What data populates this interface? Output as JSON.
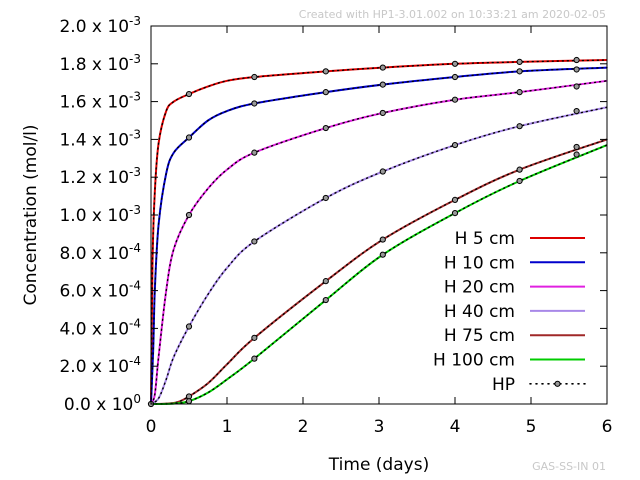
{
  "header_note": "Created with HP1-3.01.002 on 10:33:21 am 2020-02-05",
  "footer_note": "GAS-SS-IN 01",
  "chart_data": {
    "type": "line",
    "xlabel": "Time (days)",
    "ylabel": "Concentration (mol/l)",
    "xlim": [
      0,
      6
    ],
    "ylim": [
      0,
      0.002
    ],
    "x_ticks": [
      0,
      1,
      2,
      3,
      4,
      5,
      6
    ],
    "y_ticks": [
      {
        "value": 0.0,
        "mantissa": "0.0 x 10",
        "exponent": "0"
      },
      {
        "value": 0.0002,
        "mantissa": "2.0 x 10",
        "exponent": "-4"
      },
      {
        "value": 0.0004,
        "mantissa": "4.0 x 10",
        "exponent": "-4"
      },
      {
        "value": 0.0006,
        "mantissa": "6.0 x 10",
        "exponent": "-4"
      },
      {
        "value": 0.0008,
        "mantissa": "8.0 x 10",
        "exponent": "-4"
      },
      {
        "value": 0.001,
        "mantissa": "1.0 x 10",
        "exponent": "-3"
      },
      {
        "value": 0.0012,
        "mantissa": "1.2 x 10",
        "exponent": "-3"
      },
      {
        "value": 0.0014,
        "mantissa": "1.4 x 10",
        "exponent": "-3"
      },
      {
        "value": 0.0016,
        "mantissa": "1.6 x 10",
        "exponent": "-3"
      },
      {
        "value": 0.0018,
        "mantissa": "1.8 x 10",
        "exponent": "-3"
      },
      {
        "value": 0.002,
        "mantissa": "2.0 x 10",
        "exponent": "-3"
      }
    ],
    "grid": false,
    "legend_position": "bottom-right",
    "series": [
      {
        "name": "H 5 cm",
        "color": "#dd0000",
        "x": [
          0,
          0.02,
          0.05,
          0.1,
          0.2,
          0.3,
          0.5,
          0.75,
          1,
          1.36,
          2.3,
          3.05,
          4,
          4.85,
          6
        ],
        "y": [
          0,
          0.00075,
          0.00112,
          0.00138,
          0.00155,
          0.0016,
          0.00164,
          0.00168,
          0.00171,
          0.00173,
          0.00176,
          0.00178,
          0.0018,
          0.00181,
          0.00182
        ]
      },
      {
        "name": "H 10 cm",
        "color": "#0000cc",
        "x": [
          0,
          0.03,
          0.05,
          0.1,
          0.2,
          0.3,
          0.5,
          0.75,
          1,
          1.36,
          2.3,
          3.05,
          4,
          4.85,
          6
        ],
        "y": [
          0,
          0.0003,
          0.0006,
          0.00095,
          0.00122,
          0.00133,
          0.00141,
          0.0015,
          0.00155,
          0.00159,
          0.00165,
          0.00169,
          0.00173,
          0.00176,
          0.00178
        ]
      },
      {
        "name": "H 20 cm",
        "color": "#e020e0",
        "x": [
          0,
          0.05,
          0.1,
          0.2,
          0.3,
          0.5,
          0.75,
          1,
          1.36,
          2.3,
          3.05,
          4,
          4.85,
          6
        ],
        "y": [
          0,
          5e-05,
          0.00025,
          0.0006,
          0.00082,
          0.001,
          0.00114,
          0.00124,
          0.00133,
          0.00146,
          0.00154,
          0.00161,
          0.00165,
          0.00171
        ]
      },
      {
        "name": "H 40 cm",
        "color": "#a888e8",
        "x": [
          0,
          0.1,
          0.2,
          0.3,
          0.5,
          0.75,
          1,
          1.36,
          2.3,
          3.05,
          4,
          4.85,
          6
        ],
        "y": [
          0,
          3e-05,
          0.00013,
          0.00025,
          0.00041,
          0.00058,
          0.00072,
          0.00086,
          0.00109,
          0.00123,
          0.00137,
          0.00147,
          0.00157
        ]
      },
      {
        "name": "H 75 cm",
        "color": "#a02828",
        "x": [
          0,
          0.2,
          0.35,
          0.5,
          0.75,
          1,
          1.36,
          2.3,
          3.05,
          4,
          4.85,
          6
        ],
        "y": [
          0,
          2e-06,
          1e-05,
          4e-05,
          0.00011,
          0.00021,
          0.00035,
          0.00065,
          0.00087,
          0.00108,
          0.00124,
          0.0014
        ]
      },
      {
        "name": "H 100 cm",
        "color": "#00cc00",
        "x": [
          0,
          0.3,
          0.5,
          0.75,
          1,
          1.36,
          2.3,
          3.05,
          4,
          4.85,
          6
        ],
        "y": [
          0,
          2e-06,
          1.5e-05,
          6e-05,
          0.00013,
          0.00024,
          0.00055,
          0.00079,
          0.00101,
          0.00118,
          0.00137
        ]
      }
    ],
    "hp_points": {
      "name": "HP",
      "x": [
        0.5,
        1.36,
        2.3,
        3.05,
        4.0,
        4.85,
        5.6
      ],
      "series_points": [
        [
          0.00164,
          0.00173,
          0.00176,
          0.00178,
          0.0018,
          0.00181,
          0.00182
        ],
        [
          0.00141,
          0.00159,
          0.00165,
          0.00169,
          0.00173,
          0.00176,
          0.00177
        ],
        [
          0.001,
          0.00133,
          0.00146,
          0.00154,
          0.00161,
          0.00165,
          0.00168
        ],
        [
          0.00041,
          0.00086,
          0.00109,
          0.00123,
          0.00137,
          0.00147,
          0.00155
        ],
        [
          4e-05,
          0.00035,
          0.00065,
          0.00087,
          0.00108,
          0.00124,
          0.00136
        ],
        [
          1.5e-05,
          0.00024,
          0.00055,
          0.00079,
          0.00101,
          0.00118,
          0.00132
        ]
      ],
      "origin": [
        0,
        0
      ]
    }
  }
}
